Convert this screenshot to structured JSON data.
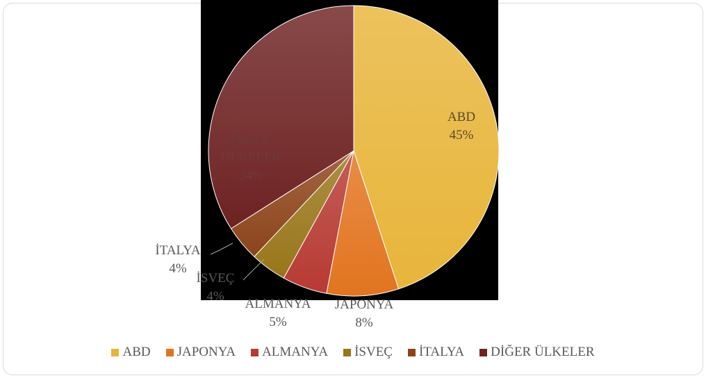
{
  "chart_data": {
    "type": "pie",
    "title": "",
    "labels": [
      "ABD",
      "JAPONYA",
      "ALMANYA",
      "İSVEÇ",
      "İTALYA",
      "DİĞER ÜLKELER"
    ],
    "values": [
      45,
      8,
      5,
      4,
      4,
      34
    ],
    "value_labels": [
      "45%",
      "8%",
      "5%",
      "4%",
      "4%",
      "34%"
    ],
    "colors": [
      "#e8b53a",
      "#e2741f",
      "#b73a33",
      "#98761a",
      "#8c441a",
      "#6e2222"
    ],
    "legend_position": "bottom",
    "data_labels": true
  }
}
